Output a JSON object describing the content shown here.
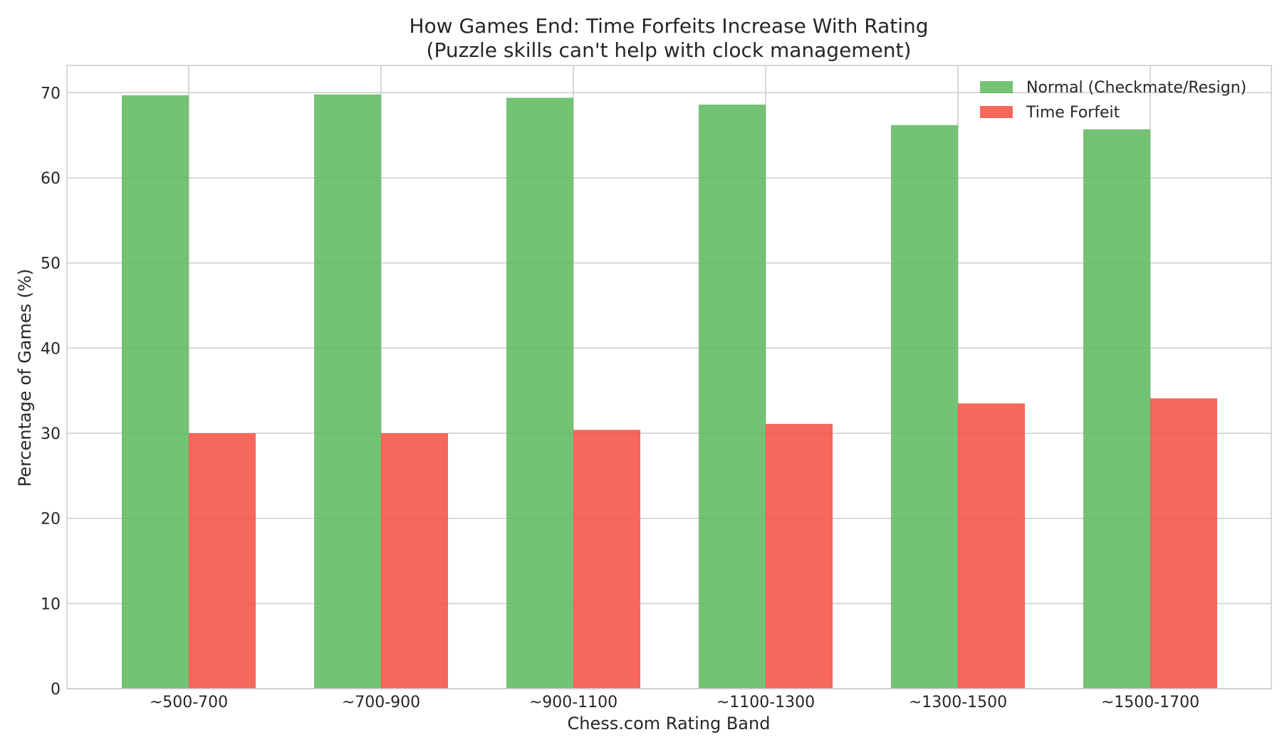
{
  "chart_data": {
    "type": "bar",
    "title": "How Games End: Time Forfeits Increase With Rating",
    "subtitle": "(Puzzle skills can't help with clock management)",
    "xlabel": "Chess.com Rating Band",
    "ylabel": "Percentage of Games (%)",
    "categories": [
      "~500-700",
      "~700-900",
      "~900-1100",
      "~1100-1300",
      "~1300-1500",
      "~1500-1700"
    ],
    "series": [
      {
        "name": "Normal (Checkmate/Resign)",
        "color": "#5cb85c",
        "values": [
          69.7,
          69.8,
          69.4,
          68.6,
          66.2,
          65.7
        ]
      },
      {
        "name": "Time Forfeit",
        "color": "#f44d40",
        "values": [
          30.0,
          30.0,
          30.4,
          31.1,
          33.5,
          34.1
        ]
      }
    ],
    "ylim": [
      0,
      73.2
    ],
    "yticks": [
      0,
      10,
      20,
      30,
      40,
      50,
      60,
      70
    ],
    "grid": true,
    "legend_position": "top-right"
  }
}
